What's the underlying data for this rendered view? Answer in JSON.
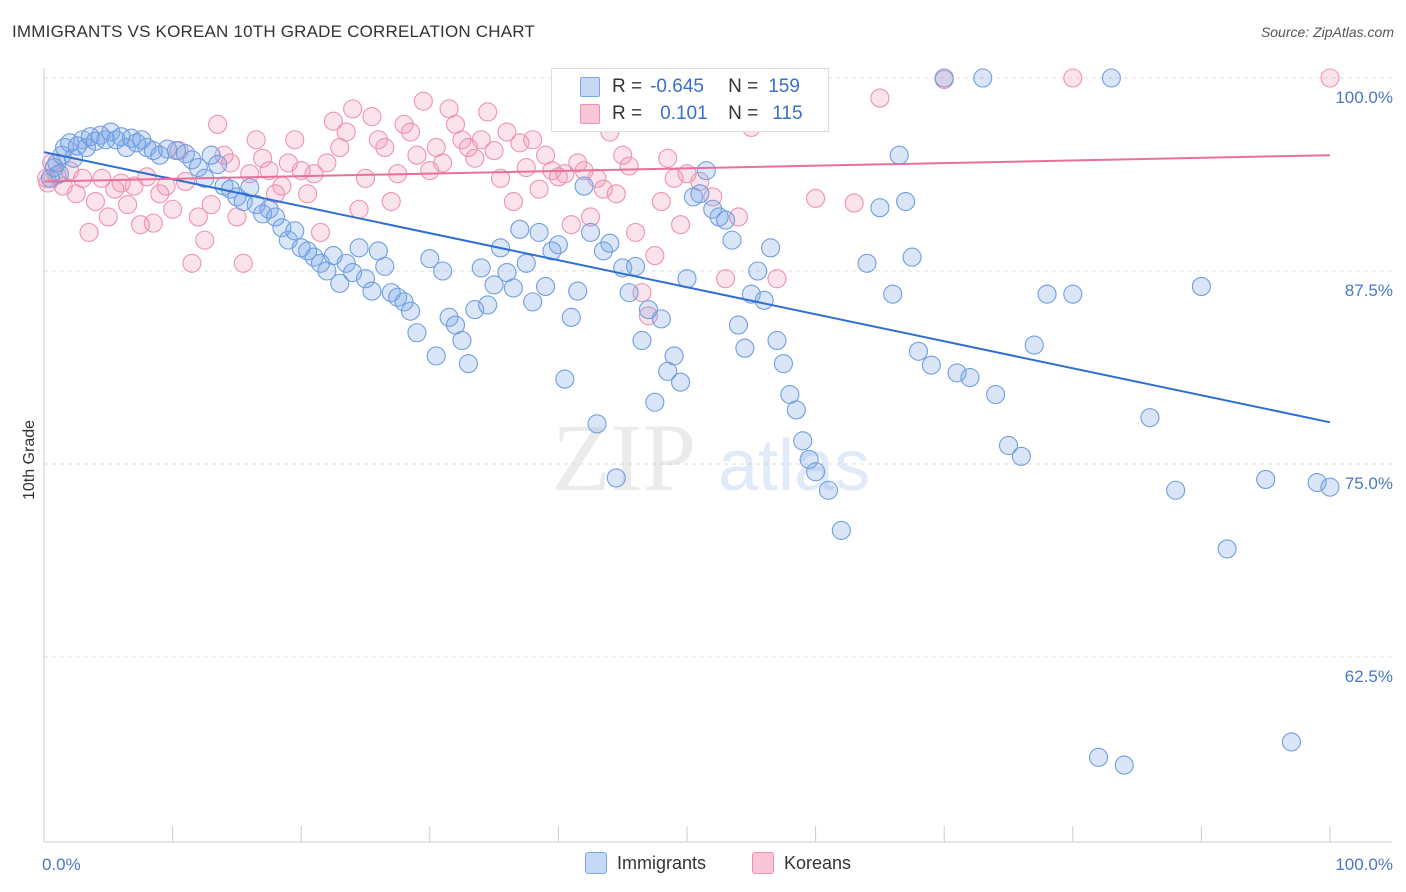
{
  "title": "IMMIGRANTS VS KOREAN 10TH GRADE CORRELATION CHART",
  "source": "Source: ZipAtlas.com",
  "watermark": {
    "zip": "ZIP",
    "atlas": "atlas"
  },
  "legend": {
    "immigrants": {
      "r_label": "R =",
      "r_value": "-0.645",
      "n_label": "N =",
      "n_value": "159",
      "color": "#7aa6e6"
    },
    "koreans": {
      "r_label": "R =",
      "r_value": "0.101",
      "n_label": "N =",
      "n_value": "115",
      "color": "#f090b0"
    }
  },
  "bottom_legend": {
    "immigrants": "Immigrants",
    "koreans": "Koreans"
  },
  "chart_data": {
    "type": "scatter",
    "title": "IMMIGRANTS VS KOREAN 10TH GRADE CORRELATION CHART",
    "xlabel": "",
    "ylabel": "10th Grade",
    "xlim": [
      0,
      100
    ],
    "ylim": [
      52,
      100.5
    ],
    "y_ticks": [
      100.0,
      87.5,
      75.0,
      62.5
    ],
    "y_tick_labels": [
      "100.0%",
      "87.5%",
      "75.0%",
      "62.5%"
    ],
    "x_tick_labels": [
      "0.0%",
      "100.0%"
    ],
    "grid": "horizontal dashed",
    "series": [
      {
        "name": "Immigrants",
        "color": "#7aa6e6",
        "trend": {
          "x": [
            0,
            100
          ],
          "y": [
            95.2,
            77.7
          ]
        },
        "points": [
          [
            0.5,
            93.5
          ],
          [
            0.8,
            94.2
          ],
          [
            1,
            94.5
          ],
          [
            1.2,
            93.8
          ],
          [
            1.4,
            95
          ],
          [
            1.6,
            95.5
          ],
          [
            2,
            95.8
          ],
          [
            2.3,
            94.8
          ],
          [
            2.6,
            95.6
          ],
          [
            3,
            96
          ],
          [
            3.3,
            95.5
          ],
          [
            3.6,
            96.2
          ],
          [
            4,
            95.9
          ],
          [
            4.4,
            96.3
          ],
          [
            4.8,
            96
          ],
          [
            5.2,
            96.5
          ],
          [
            5.6,
            96
          ],
          [
            6,
            96.2
          ],
          [
            6.4,
            95.5
          ],
          [
            6.8,
            96.1
          ],
          [
            7.2,
            95.8
          ],
          [
            7.6,
            96
          ],
          [
            8,
            95.5
          ],
          [
            8.5,
            95.3
          ],
          [
            9,
            95
          ],
          [
            9.6,
            95.4
          ],
          [
            10.3,
            95.3
          ],
          [
            11,
            95.1
          ],
          [
            11.5,
            94.7
          ],
          [
            12,
            94.2
          ],
          [
            12.5,
            93.5
          ],
          [
            13,
            95
          ],
          [
            13.5,
            94.4
          ],
          [
            14,
            93
          ],
          [
            14.5,
            92.8
          ],
          [
            15,
            92.3
          ],
          [
            15.5,
            92
          ],
          [
            16,
            92.9
          ],
          [
            16.5,
            91.8
          ],
          [
            17,
            91.2
          ],
          [
            17.5,
            91.5
          ],
          [
            18,
            91
          ],
          [
            18.5,
            90.3
          ],
          [
            19,
            89.5
          ],
          [
            19.5,
            90.1
          ],
          [
            20,
            89
          ],
          [
            20.5,
            88.8
          ],
          [
            21,
            88.4
          ],
          [
            21.5,
            88
          ],
          [
            22,
            87.5
          ],
          [
            22.5,
            88.5
          ],
          [
            23,
            86.7
          ],
          [
            23.5,
            88
          ],
          [
            24,
            87.4
          ],
          [
            24.5,
            89
          ],
          [
            25,
            87
          ],
          [
            25.5,
            86.2
          ],
          [
            26,
            88.8
          ],
          [
            26.5,
            87.8
          ],
          [
            27,
            86.1
          ],
          [
            27.5,
            85.8
          ],
          [
            28,
            85.5
          ],
          [
            28.5,
            84.9
          ],
          [
            29,
            83.5
          ],
          [
            30,
            88.3
          ],
          [
            30.5,
            82
          ],
          [
            31,
            87.5
          ],
          [
            31.5,
            84.5
          ],
          [
            32,
            84
          ],
          [
            32.5,
            83
          ],
          [
            33,
            81.5
          ],
          [
            33.5,
            85
          ],
          [
            34,
            87.7
          ],
          [
            34.5,
            85.3
          ],
          [
            35,
            86.6
          ],
          [
            35.5,
            89
          ],
          [
            36,
            87.4
          ],
          [
            36.5,
            86.4
          ],
          [
            37,
            90.2
          ],
          [
            37.5,
            88
          ],
          [
            38,
            85.5
          ],
          [
            38.5,
            90
          ],
          [
            39,
            86.5
          ],
          [
            39.5,
            88.8
          ],
          [
            40,
            89.2
          ],
          [
            40.5,
            80.5
          ],
          [
            41,
            84.5
          ],
          [
            41.5,
            86.2
          ],
          [
            42,
            93
          ],
          [
            42.5,
            90
          ],
          [
            43,
            77.6
          ],
          [
            43.5,
            88.8
          ],
          [
            44,
            89.3
          ],
          [
            44.5,
            74.1
          ],
          [
            45,
            87.7
          ],
          [
            45.5,
            86.1
          ],
          [
            46,
            87.8
          ],
          [
            46.5,
            83
          ],
          [
            47,
            85
          ],
          [
            47.5,
            79
          ],
          [
            48,
            84.4
          ],
          [
            48.5,
            81
          ],
          [
            49,
            82
          ],
          [
            49.5,
            80.3
          ],
          [
            50,
            87
          ],
          [
            50.5,
            92.3
          ],
          [
            51,
            92.5
          ],
          [
            51.5,
            94
          ],
          [
            52,
            91.5
          ],
          [
            52.5,
            91
          ],
          [
            53,
            90.8
          ],
          [
            53.5,
            89.5
          ],
          [
            54,
            84
          ],
          [
            54.5,
            82.5
          ],
          [
            55,
            86
          ],
          [
            55.5,
            87.5
          ],
          [
            56,
            85.6
          ],
          [
            56.5,
            89
          ],
          [
            57,
            83
          ],
          [
            57.5,
            81.5
          ],
          [
            58,
            79.5
          ],
          [
            58.5,
            78.5
          ],
          [
            59,
            76.5
          ],
          [
            59.5,
            75.3
          ],
          [
            60,
            74.5
          ],
          [
            61,
            73.3
          ],
          [
            62,
            70.7
          ],
          [
            64,
            88
          ],
          [
            65,
            91.6
          ],
          [
            66,
            86
          ],
          [
            66.5,
            95
          ],
          [
            67,
            92
          ],
          [
            67.5,
            88.4
          ],
          [
            68,
            82.3
          ],
          [
            69,
            81.4
          ],
          [
            70,
            100
          ],
          [
            71,
            80.9
          ],
          [
            72,
            80.6
          ],
          [
            73,
            100
          ],
          [
            74,
            79.5
          ],
          [
            75,
            76.2
          ],
          [
            76,
            75.5
          ],
          [
            77,
            82.7
          ],
          [
            78,
            86
          ],
          [
            80,
            86
          ],
          [
            82,
            56
          ],
          [
            83,
            100
          ],
          [
            84,
            55.5
          ],
          [
            86,
            78
          ],
          [
            88,
            73.3
          ],
          [
            90,
            86.5
          ],
          [
            92,
            69.5
          ],
          [
            95,
            74
          ],
          [
            97,
            57
          ],
          [
            99,
            73.8
          ],
          [
            100,
            73.5
          ]
        ]
      },
      {
        "name": "Koreans",
        "color": "#f090b0",
        "trend": {
          "x": [
            0,
            100
          ],
          "y": [
            93.3,
            95.0
          ]
        },
        "points": [
          [
            0.3,
            93.2
          ],
          [
            0.6,
            94.5
          ],
          [
            1,
            93.7
          ],
          [
            1.5,
            93
          ],
          [
            2,
            94
          ],
          [
            2.5,
            92.5
          ],
          [
            3,
            93.5
          ],
          [
            3.5,
            90
          ],
          [
            4,
            92
          ],
          [
            4.5,
            93.5
          ],
          [
            5,
            91
          ],
          [
            5.5,
            92.8
          ],
          [
            6,
            93.2
          ],
          [
            6.5,
            91.8
          ],
          [
            7,
            93
          ],
          [
            7.5,
            90.5
          ],
          [
            8,
            93.6
          ],
          [
            8.5,
            90.6
          ],
          [
            9,
            92.5
          ],
          [
            9.5,
            93
          ],
          [
            10,
            91.5
          ],
          [
            10.5,
            95.3
          ],
          [
            11,
            93.3
          ],
          [
            11.5,
            88
          ],
          [
            12,
            91
          ],
          [
            12.5,
            89.5
          ],
          [
            13,
            91.8
          ],
          [
            13.5,
            97
          ],
          [
            14,
            95
          ],
          [
            14.5,
            94.5
          ],
          [
            15,
            91
          ],
          [
            15.5,
            88
          ],
          [
            16,
            93.8
          ],
          [
            16.5,
            96
          ],
          [
            17,
            94.8
          ],
          [
            17.5,
            94
          ],
          [
            18,
            92.5
          ],
          [
            18.5,
            93
          ],
          [
            19,
            94.5
          ],
          [
            19.5,
            96
          ],
          [
            20,
            94
          ],
          [
            20.5,
            92.5
          ],
          [
            21,
            93.8
          ],
          [
            21.5,
            90
          ],
          [
            22,
            94.5
          ],
          [
            22.5,
            97.2
          ],
          [
            23,
            95.5
          ],
          [
            23.5,
            96.5
          ],
          [
            24,
            98
          ],
          [
            24.5,
            91.5
          ],
          [
            25,
            93.5
          ],
          [
            25.5,
            97.5
          ],
          [
            26,
            96
          ],
          [
            26.5,
            95.5
          ],
          [
            27,
            92
          ],
          [
            27.5,
            93.8
          ],
          [
            28,
            97
          ],
          [
            28.5,
            96.5
          ],
          [
            29,
            95
          ],
          [
            29.5,
            98.5
          ],
          [
            30,
            94
          ],
          [
            30.5,
            95.5
          ],
          [
            31,
            94.5
          ],
          [
            31.5,
            98
          ],
          [
            32,
            97
          ],
          [
            32.5,
            96
          ],
          [
            33,
            95.5
          ],
          [
            33.5,
            94.8
          ],
          [
            34,
            96
          ],
          [
            34.5,
            97.8
          ],
          [
            35,
            95.3
          ],
          [
            35.5,
            93.5
          ],
          [
            36,
            96.5
          ],
          [
            36.5,
            92
          ],
          [
            37,
            95.8
          ],
          [
            37.5,
            94.2
          ],
          [
            38,
            96
          ],
          [
            38.5,
            92.8
          ],
          [
            39,
            95
          ],
          [
            39.5,
            94
          ],
          [
            40,
            93.6
          ],
          [
            40.5,
            93.8
          ],
          [
            41,
            90.5
          ],
          [
            41.5,
            94.5
          ],
          [
            42,
            94
          ],
          [
            42.5,
            91
          ],
          [
            43,
            93.5
          ],
          [
            43.5,
            92.8
          ],
          [
            44,
            96.5
          ],
          [
            44.5,
            92.5
          ],
          [
            45,
            95
          ],
          [
            45.5,
            94.3
          ],
          [
            46,
            90
          ],
          [
            46.5,
            86.1
          ],
          [
            47,
            84.6
          ],
          [
            47.5,
            88.5
          ],
          [
            48,
            92
          ],
          [
            48.5,
            94.8
          ],
          [
            49,
            93.5
          ],
          [
            49.5,
            90.5
          ],
          [
            50,
            93.8
          ],
          [
            51,
            93.3
          ],
          [
            52,
            92.3
          ],
          [
            53,
            87
          ],
          [
            54,
            91
          ],
          [
            55,
            96.8
          ],
          [
            57,
            87
          ],
          [
            60,
            92.2
          ],
          [
            63,
            91.9
          ],
          [
            65,
            98.7
          ],
          [
            70,
            99.9
          ],
          [
            80,
            100
          ],
          [
            100,
            100
          ],
          [
            0.2,
            93.5
          ]
        ]
      }
    ]
  }
}
